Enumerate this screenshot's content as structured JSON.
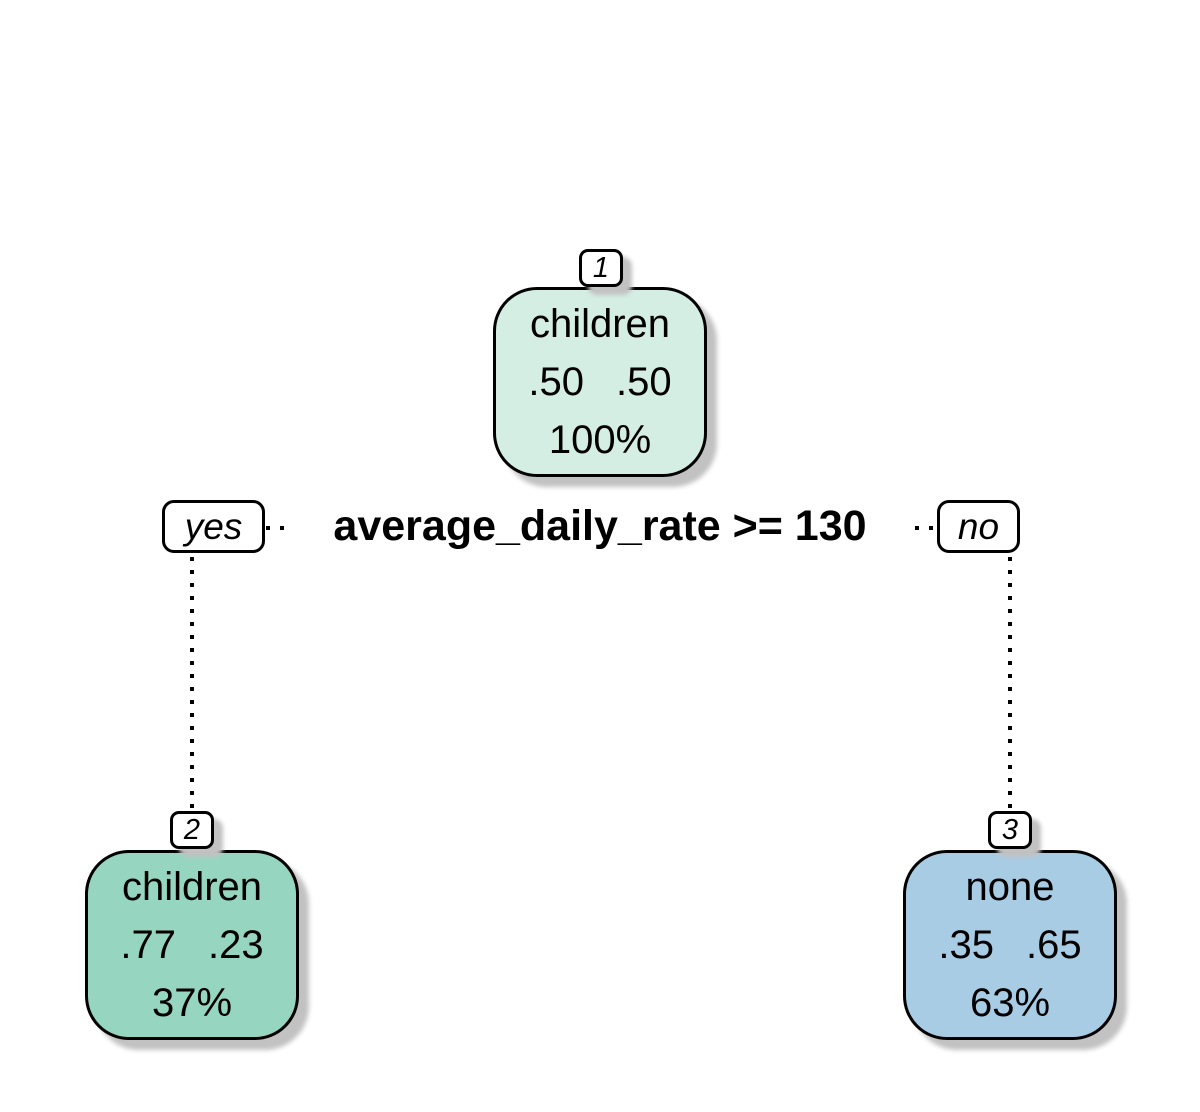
{
  "figure": {
    "type": "decision-tree",
    "background": "#ffffff",
    "split": {
      "condition": "average_daily_rate >= 130",
      "yes_label": "yes",
      "no_label": "no"
    },
    "nodes": [
      {
        "id": "1",
        "label": "children",
        "prob_left": ".50",
        "prob_right": ".50",
        "coverage": "100%",
        "fill": "#d5eee3"
      },
      {
        "id": "2",
        "label": "children",
        "prob_left": ".77",
        "prob_right": ".23",
        "coverage": "37%",
        "fill": "#96d6c1"
      },
      {
        "id": "3",
        "label": "none",
        "prob_left": ".35",
        "prob_right": ".65",
        "coverage": "63%",
        "fill": "#a8cce4"
      }
    ],
    "colors": {
      "border": "#000000",
      "shadow": "#c2c2c2",
      "root_fill": "#d5eee3",
      "left_leaf_fill": "#96d6c1",
      "right_leaf_fill": "#a8cce4",
      "label_box_fill": "#ffffff"
    }
  }
}
